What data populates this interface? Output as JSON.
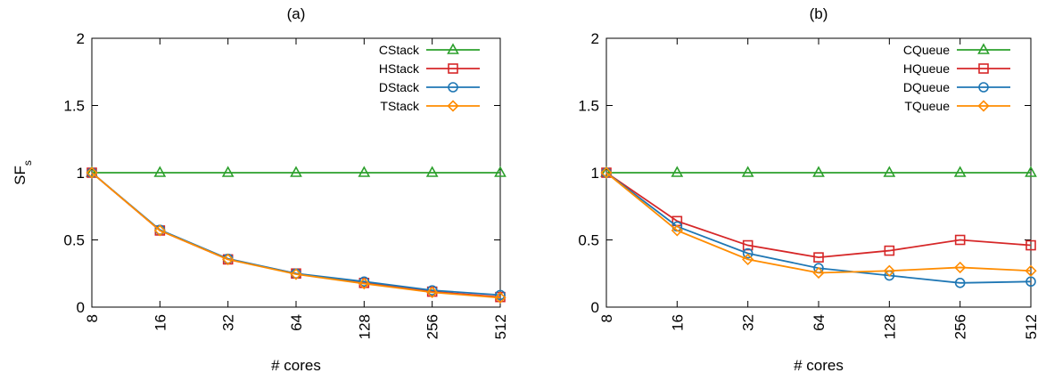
{
  "chart_data": [
    {
      "type": "line",
      "title": "(a)",
      "xlabel": "# cores",
      "ylabel": "SF",
      "ylabel_sub": "s",
      "categories": [
        "8",
        "16",
        "32",
        "64",
        "128",
        "256",
        "512"
      ],
      "ylim": [
        0,
        2
      ],
      "yticks": [
        "0",
        "0.5",
        "1",
        "1.5",
        "2"
      ],
      "legend_position": "top-right",
      "grid": false,
      "series": [
        {
          "name": "CStack",
          "marker": "triangle",
          "color": "#2ca02c",
          "values": [
            1,
            1,
            1,
            1,
            1,
            1,
            1
          ]
        },
        {
          "name": "HStack",
          "marker": "square",
          "color": "#d62728",
          "values": [
            1,
            0.57,
            0.355,
            0.25,
            0.18,
            0.115,
            0.075
          ]
        },
        {
          "name": "DStack",
          "marker": "circle",
          "color": "#1f77b4",
          "values": [
            1,
            0.575,
            0.36,
            0.25,
            0.19,
            0.125,
            0.09
          ]
        },
        {
          "name": "TStack",
          "marker": "diamond",
          "color": "#ff8c00",
          "values": [
            1,
            0.57,
            0.355,
            0.245,
            0.175,
            0.11,
            0.07
          ]
        }
      ]
    },
    {
      "type": "line",
      "title": "(b)",
      "xlabel": "# cores",
      "ylabel": "",
      "categories": [
        "8",
        "16",
        "32",
        "64",
        "128",
        "256",
        "512"
      ],
      "ylim": [
        0,
        2
      ],
      "yticks": [
        "0",
        "0.5",
        "1",
        "1.5",
        "2"
      ],
      "legend_position": "top-right",
      "grid": false,
      "series": [
        {
          "name": "CQueue",
          "marker": "triangle",
          "color": "#2ca02c",
          "values": [
            1,
            1,
            1,
            1,
            1,
            1,
            1
          ]
        },
        {
          "name": "HQueue",
          "marker": "square",
          "color": "#d62728",
          "values": [
            1,
            0.64,
            0.46,
            0.37,
            0.42,
            0.5,
            0.46
          ]
        },
        {
          "name": "DQueue",
          "marker": "circle",
          "color": "#1f77b4",
          "values": [
            1,
            0.6,
            0.4,
            0.29,
            0.235,
            0.18,
            0.19
          ]
        },
        {
          "name": "TQueue",
          "marker": "diamond",
          "color": "#ff8c00",
          "values": [
            1,
            0.57,
            0.355,
            0.255,
            0.27,
            0.295,
            0.27
          ]
        }
      ]
    }
  ]
}
